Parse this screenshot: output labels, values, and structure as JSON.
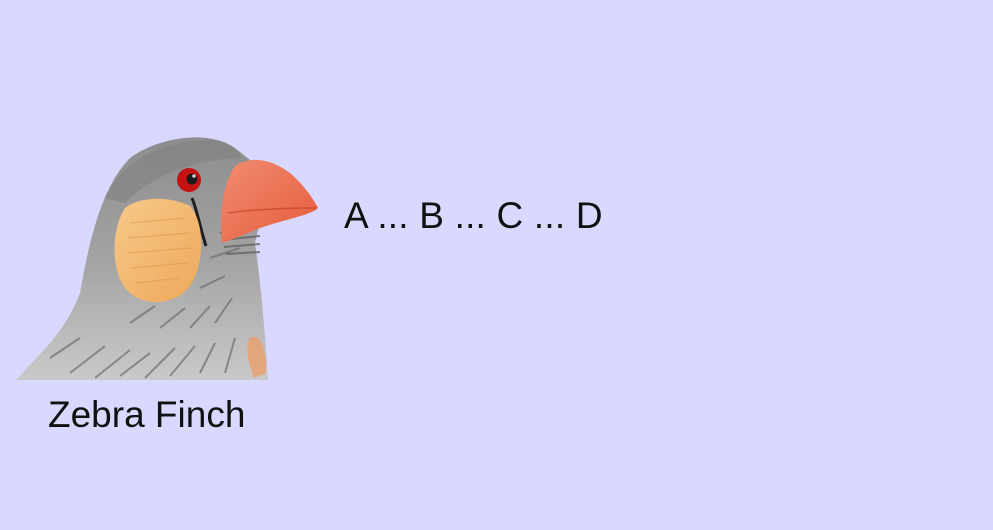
{
  "background_color": "#d9d9ff",
  "illustration": {
    "icon": "zebra-finch-head-illustration",
    "colors": {
      "plumage": "#a6a6a6",
      "cheek": "#f2b56b",
      "beak": "#ec6a4c",
      "eye": "#c51212"
    }
  },
  "caption": "Zebra Finch",
  "sequence": "A ... B ... C ... D"
}
